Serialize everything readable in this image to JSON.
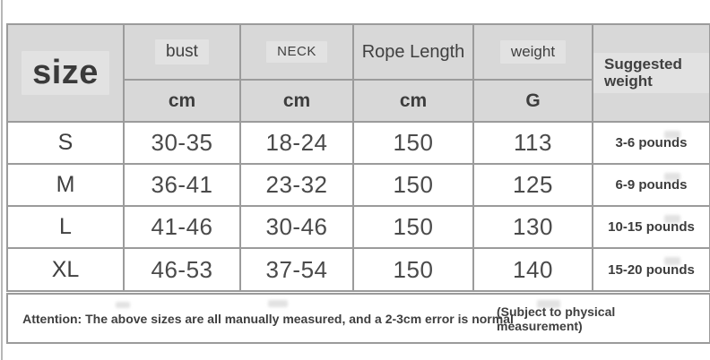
{
  "chart_data": {
    "type": "table",
    "header": {
      "size_label": "size",
      "groups": [
        {
          "label": "bust",
          "unit": "cm"
        },
        {
          "label": "NECK",
          "unit": "cm"
        },
        {
          "label": "Rope Length",
          "unit": "cm"
        },
        {
          "label": "weight",
          "unit": "G"
        }
      ],
      "suggested_label": "Suggested weight"
    },
    "rows": [
      {
        "size": "S",
        "bust_cm": "30-35",
        "neck_cm": "18-24",
        "rope_length_cm": "150",
        "weight_g": "113",
        "suggested_weight": "3-6 pounds"
      },
      {
        "size": "M",
        "bust_cm": "36-41",
        "neck_cm": "23-32",
        "rope_length_cm": "150",
        "weight_g": "125",
        "suggested_weight": "6-9 pounds"
      },
      {
        "size": "L",
        "bust_cm": "41-46",
        "neck_cm": "30-46",
        "rope_length_cm": "150",
        "weight_g": "130",
        "suggested_weight": "10-15 pounds"
      },
      {
        "size": "XL",
        "bust_cm": "46-53",
        "neck_cm": "37-54",
        "rope_length_cm": "150",
        "weight_g": "140",
        "suggested_weight": "15-20 pounds"
      }
    ],
    "notes": {
      "attention": "Attention: The above sizes are all manually measured, and a 2-3cm error is normal",
      "subject": "(Subject to physical measurement)"
    }
  },
  "colors": {
    "header_bg": "#d8d8d8",
    "border": "#9b9b9b",
    "text": "#404040"
  }
}
